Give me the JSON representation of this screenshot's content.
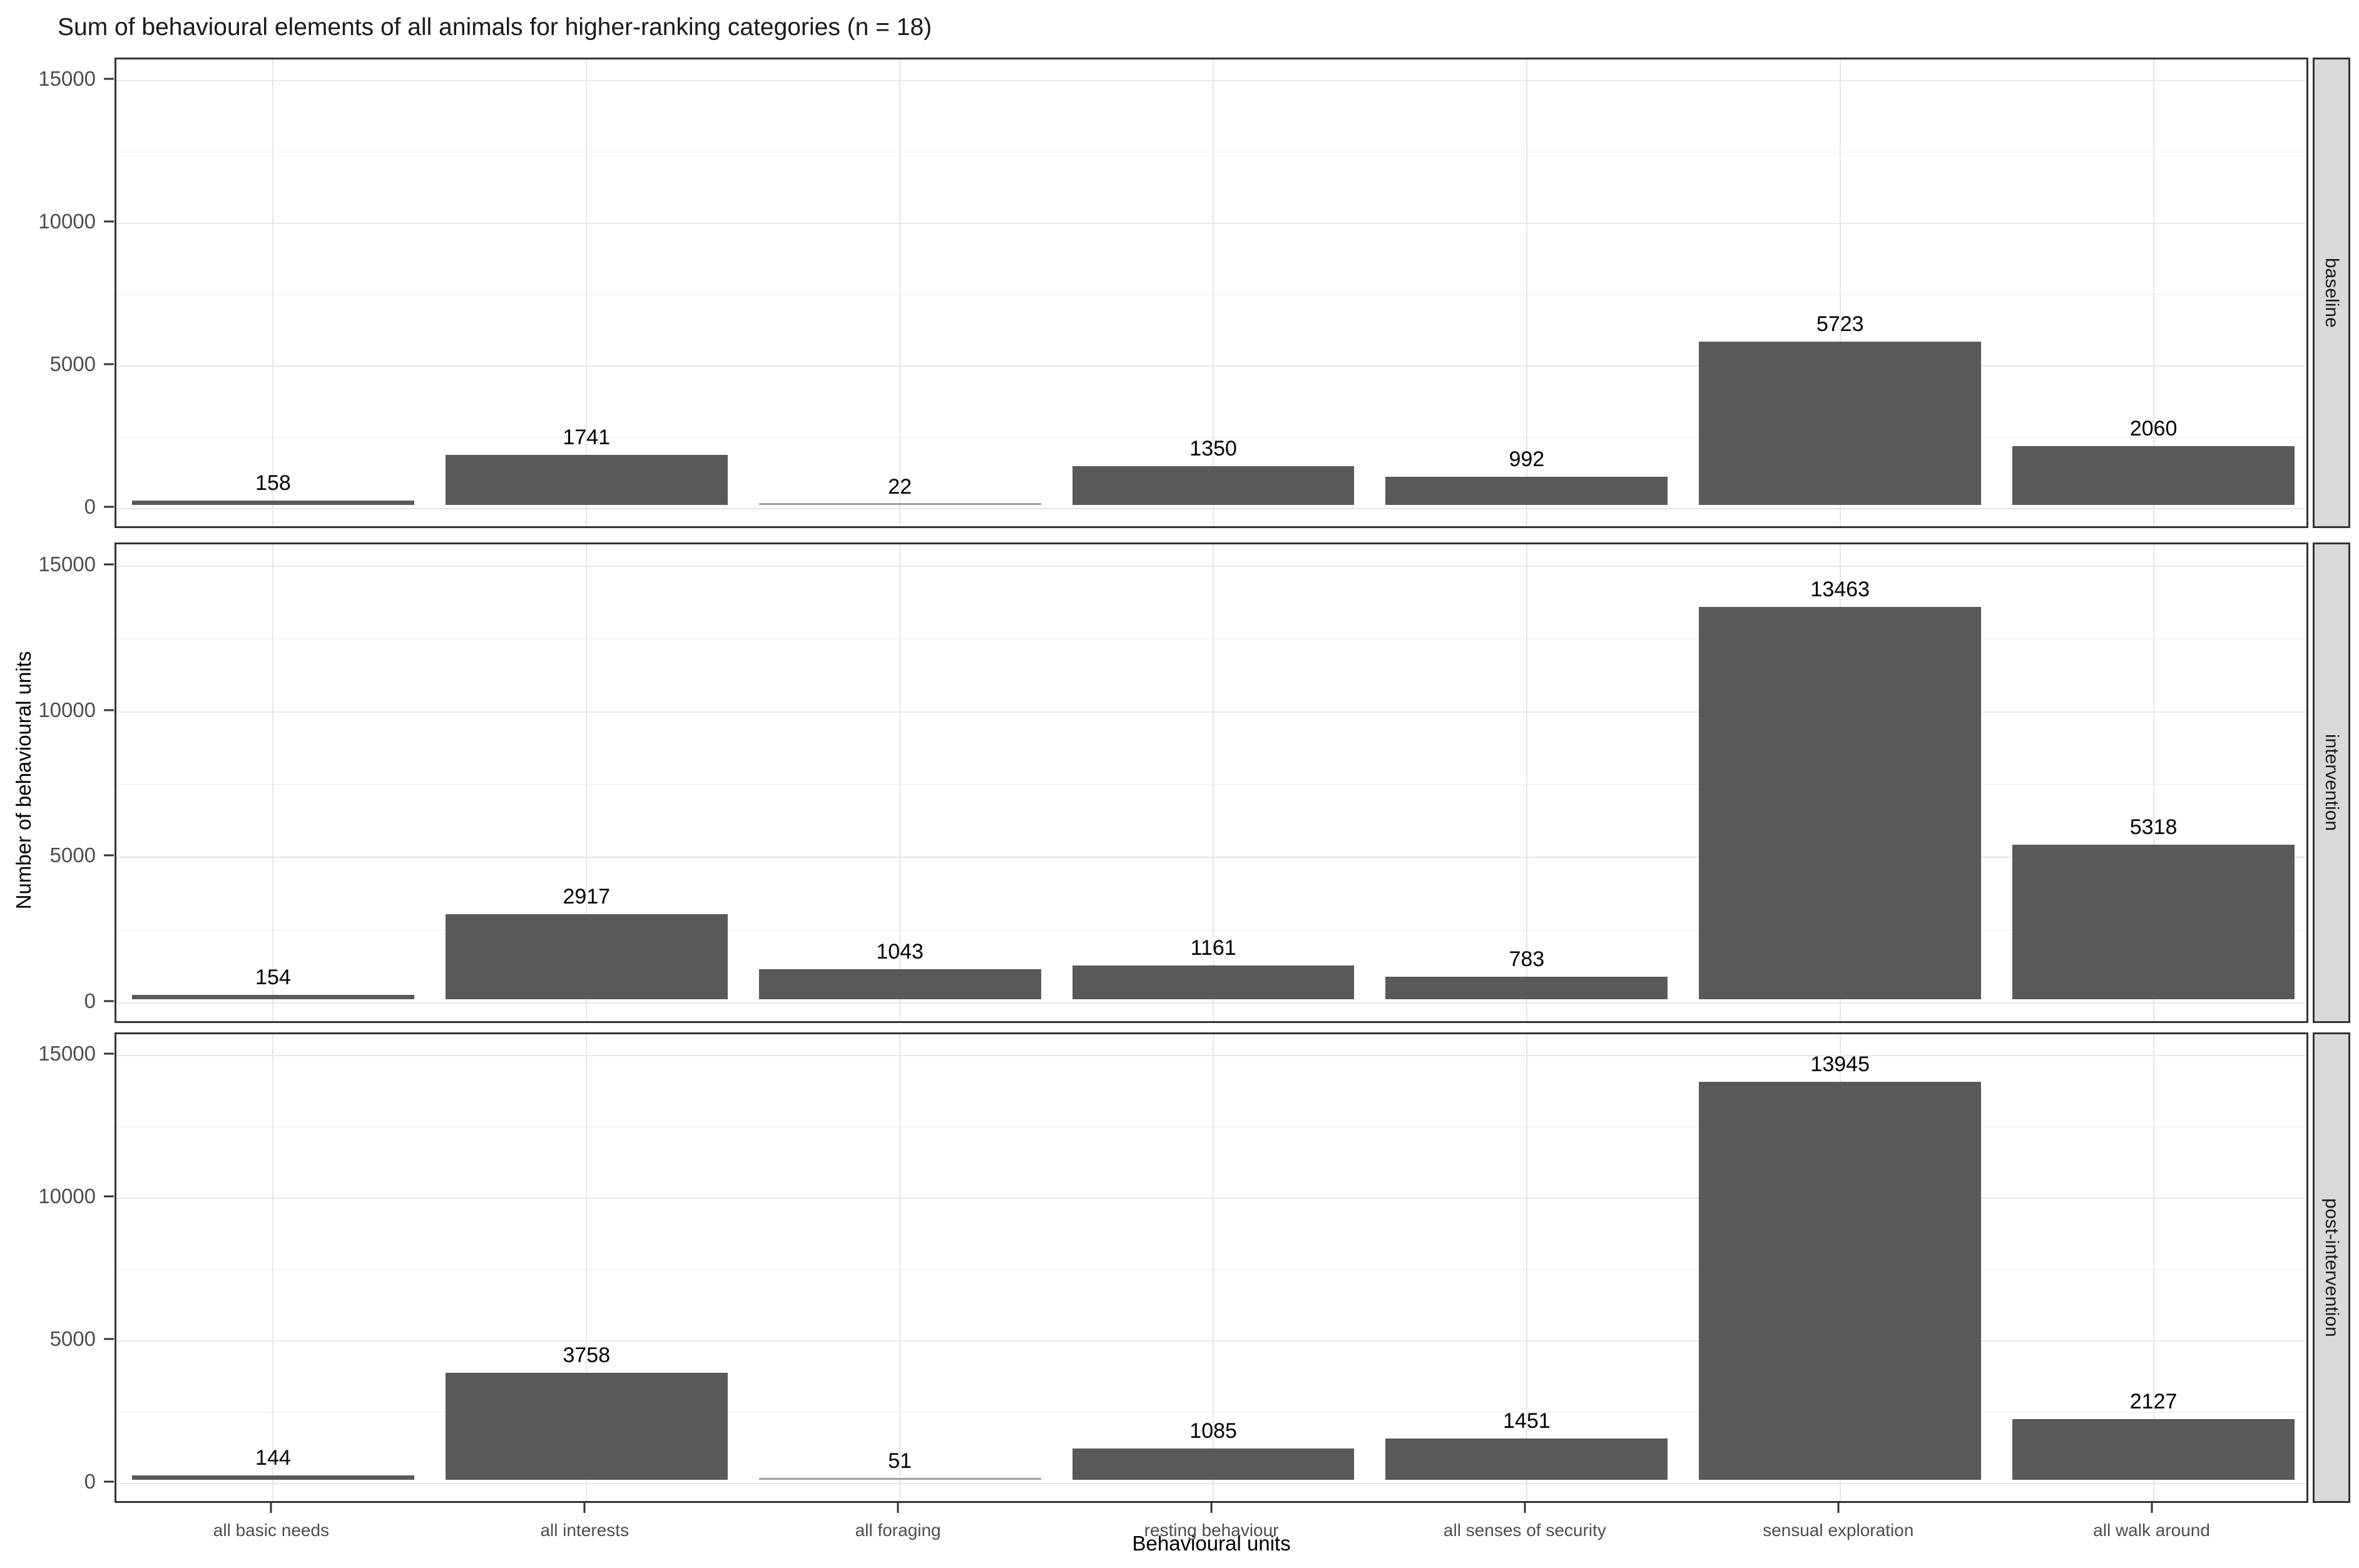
{
  "chart_data": {
    "type": "bar",
    "title": "Sum of behavioural elements of all animals for higher-ranking categories (n = 18)",
    "xlabel": "Behavioural units",
    "ylabel": "Number of behavioural units",
    "ylim": [
      0,
      15000
    ],
    "yticks": [
      0,
      5000,
      10000,
      15000
    ],
    "yticks_minor": [
      2500,
      7500,
      12500
    ],
    "grid": true,
    "legend_position": "none",
    "bar_color": "#595959",
    "small_bar_color": "#a0a0a0",
    "strip_background": "#d9d9d9",
    "panel_border_color": "#333333",
    "categories": [
      "all basic needs",
      "all interests",
      "all foraging",
      "resting behaviour",
      "all senses of security",
      "sensual exploration",
      "all walk around"
    ],
    "facet_layout": "rows-right-strip",
    "facets": [
      {
        "label": "baseline",
        "values": [
          158,
          1741,
          22,
          1350,
          992,
          5723,
          2060
        ]
      },
      {
        "label": "intervention",
        "values": [
          154,
          2917,
          1043,
          1161,
          783,
          13463,
          5318
        ]
      },
      {
        "label": "post-intervention",
        "values": [
          144,
          3758,
          51,
          1085,
          1451,
          13945,
          2127
        ]
      }
    ]
  }
}
